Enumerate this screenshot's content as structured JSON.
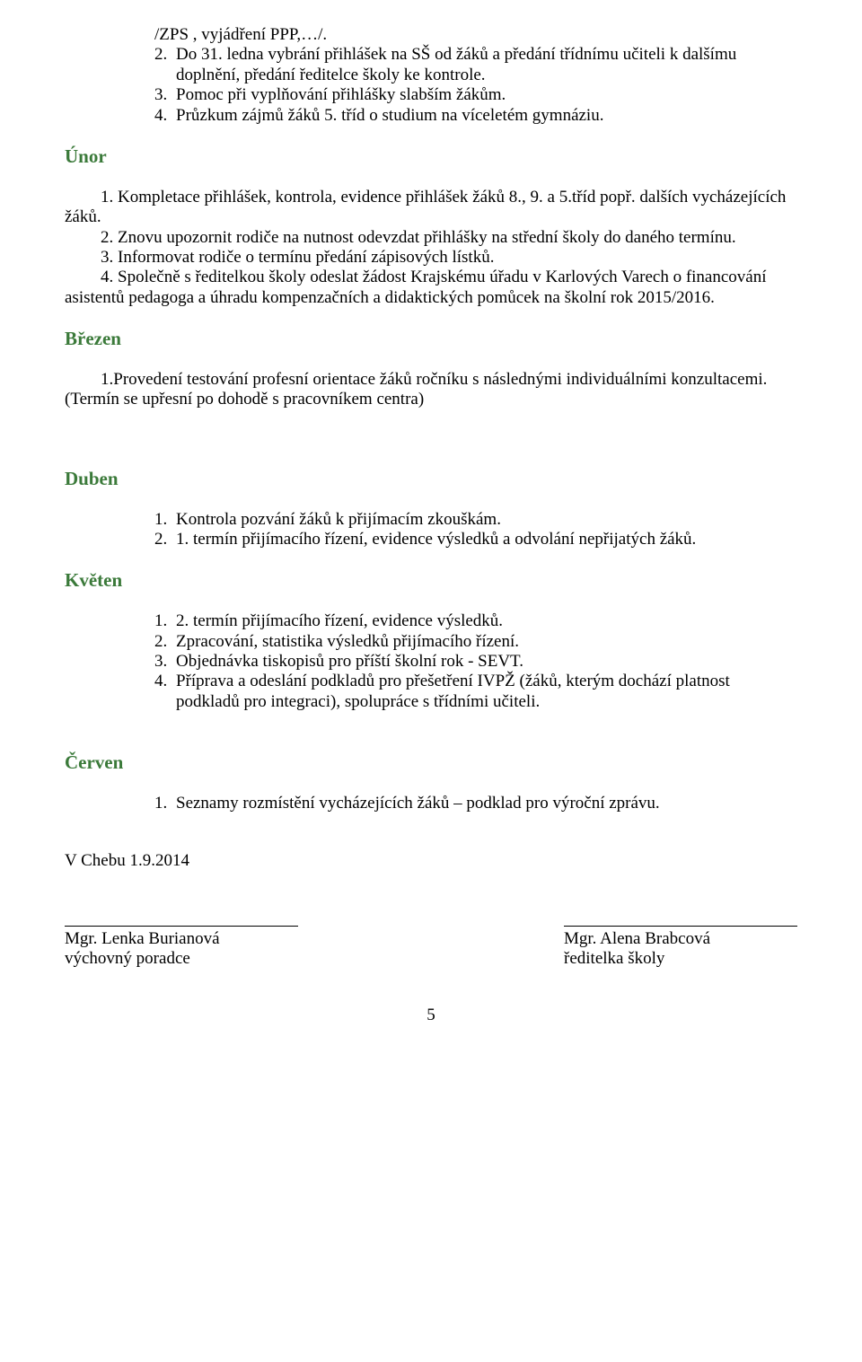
{
  "colors": {
    "heading": "#3b7a3a",
    "text": "#000000",
    "background": "#ffffff"
  },
  "typography": {
    "body_family": "Times New Roman",
    "body_size_pt": 14,
    "heading_size_pt": 16,
    "heading_weight": "bold"
  },
  "top_block": {
    "line1": "/ZPS , vyjádření PPP,…/.",
    "item2_num": "2.",
    "item2_text": "Do 31. ledna vybrání přihlášek na SŠ od žáků a předání třídnímu učiteli k dalšímu doplnění, předání ředitelce školy ke kontrole.",
    "item3_num": "3.",
    "item3_text": "Pomoc při vyplňování přihlášky slabším žákům.",
    "item4_num": "4.",
    "item4_text": "Průzkum zájmů žáků 5. tříd o studium na víceletém gymnáziu."
  },
  "unor": {
    "heading": "Únor",
    "p1_num": "1.",
    "p1_text": "Kompletace přihlášek, kontrola, evidence přihlášek žáků 8., 9. a 5.tříd popř. dalších vycházejících žáků.",
    "p2_num": "2.",
    "p2_text": "Znovu upozornit rodiče na nutnost odevzdat přihlášky na střední školy do  daného termínu.",
    "p3_num": "3.",
    "p3_text": "Informovat rodiče o termínu předání zápisových lístků.",
    "p4_num": "4.",
    "p4_text": "Společně s ředitelkou školy odeslat žádost Krajskému úřadu v Karlových Varech o financování asistentů pedagoga a úhradu kompenzačních a didaktických pomůcek na školní rok 2015/2016."
  },
  "brezen": {
    "heading": "Březen",
    "p1": "1.Provedení testování profesní orientace žáků ročníku s následnými individuálními konzultacemi. (Termín se upřesní po dohodě s pracovníkem centra)"
  },
  "duben": {
    "heading": "Duben",
    "item1_num": "1.",
    "item1_text": "Kontrola pozvání žáků k přijímacím zkouškám.",
    "item2_num": "2.",
    "item2_text": "1. termín přijímacího řízení, evidence výsledků a odvolání nepřijatých žáků."
  },
  "kveten": {
    "heading": "Květen",
    "item1_num": "1.",
    "item1_text": "2. termín přijímacího řízení, evidence výsledků.",
    "item2_num": "2.",
    "item2_text": "Zpracování, statistika výsledků přijímacího řízení.",
    "item3_num": "3.",
    "item3_text": "Objednávka tiskopisů pro příští školní rok - SEVT.",
    "item4_num": "4.",
    "item4_text": "Příprava a odeslání podkladů pro přešetření IVPŽ (žáků, kterým dochází platnost podkladů pro integraci), spolupráce s třídními učiteli."
  },
  "cerven": {
    "heading": "Červen",
    "item1_num": "1.",
    "item1_text": "Seznamy rozmístění vycházejících žáků – podklad pro výroční zprávu."
  },
  "footer": {
    "date": "V Chebu 1.9.2014",
    "left_name": "Mgr. Lenka Burianová",
    "left_role": "výchovný poradce",
    "right_name": "Mgr. Alena Brabcová",
    "right_role": "ředitelka školy"
  },
  "page_number": "5"
}
